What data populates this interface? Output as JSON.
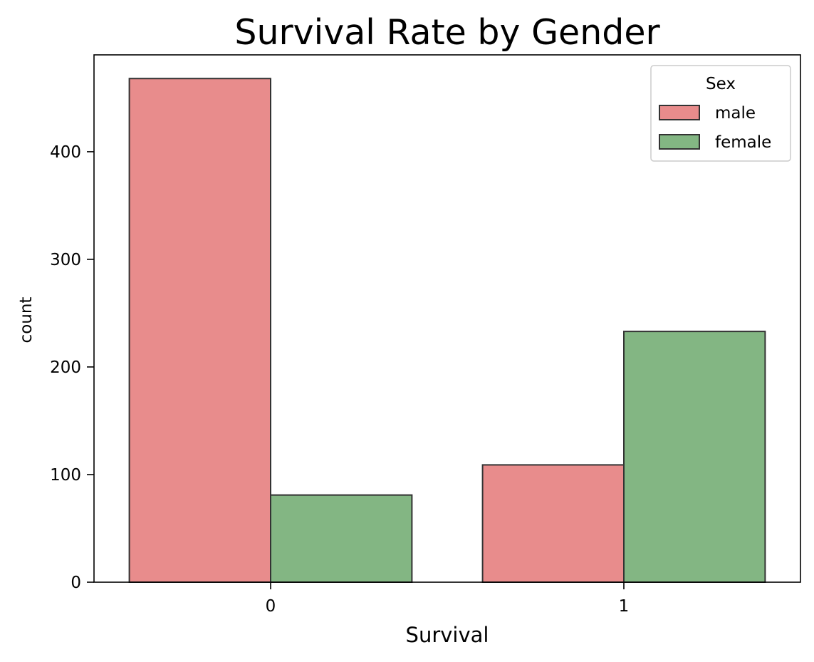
{
  "chart_data": {
    "type": "bar",
    "title": "Survival Rate by Gender",
    "xlabel": "Survival",
    "ylabel": "count",
    "categories": [
      "0",
      "1"
    ],
    "series": [
      {
        "name": "male",
        "values": [
          468,
          109
        ],
        "color": "#e06666"
      },
      {
        "name": "female",
        "values": [
          81,
          233
        ],
        "color": "#5a9e5a"
      }
    ],
    "yticks": [
      0,
      100,
      200,
      300,
      400
    ],
    "ylim": [
      0,
      490
    ],
    "legend": {
      "title": "Sex",
      "placement": "top-right"
    },
    "bar_opacity": 0.75,
    "edge_color": "#333333"
  }
}
